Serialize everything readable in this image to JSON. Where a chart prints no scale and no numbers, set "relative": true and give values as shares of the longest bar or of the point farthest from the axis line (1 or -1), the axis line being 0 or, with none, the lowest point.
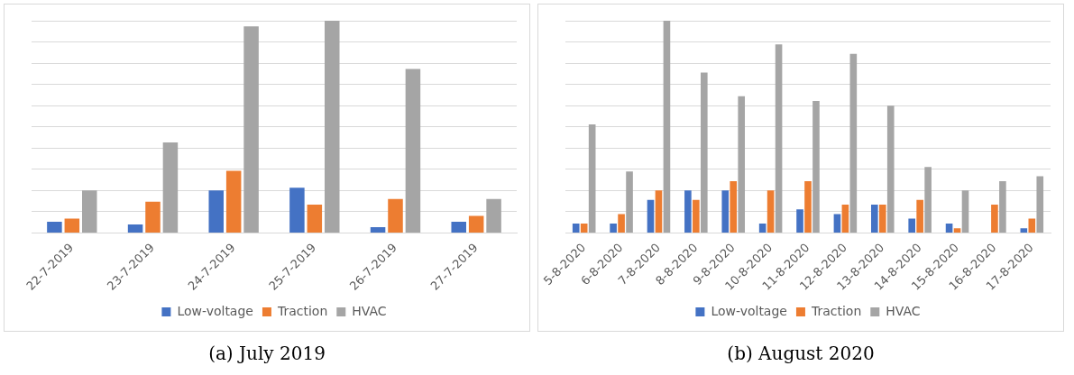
{
  "chart_data": [
    {
      "type": "bar",
      "title": "(a) July 2019",
      "categories": [
        "22-7-2019",
        "23-7-2019",
        "24-7-2019",
        "25-7-2019",
        "26-7-2019",
        "27-7-2019"
      ],
      "relative": true,
      "grid": "y",
      "legend": "bottom",
      "series": [
        {
          "name": "Low-voltage",
          "color": "#4472c4",
          "values": [
            0.053,
            0.04,
            0.2,
            0.213,
            0.027,
            0.053
          ]
        },
        {
          "name": "Traction",
          "color": "#ed7d31",
          "values": [
            0.067,
            0.147,
            0.293,
            0.133,
            0.16,
            0.08
          ]
        },
        {
          "name": "HVAC",
          "color": "#a5a5a5",
          "values": [
            0.2,
            0.427,
            0.973,
            1,
            0.773,
            0.16
          ]
        }
      ]
    },
    {
      "type": "bar",
      "title": "(b) August 2020",
      "categories": [
        "5-8-2020",
        "6-8-2020",
        "7-8-2020",
        "8-8-2020",
        "9-8-2020",
        "10-8-2020",
        "11-8-2020",
        "12-8-2020",
        "13-8-2020",
        "14-8-2020",
        "15-8-2020",
        "16-8-2020",
        "17-8-2020"
      ],
      "relative": true,
      "grid": "y",
      "legend": "bottom",
      "series": [
        {
          "name": "Low-voltage",
          "color": "#4472c4",
          "values": [
            0.044,
            0.044,
            0.156,
            0.2,
            0.2,
            0.044,
            0.111,
            0.089,
            0.133,
            0.067,
            0.044,
            0,
            0.022
          ]
        },
        {
          "name": "Traction",
          "color": "#ed7d31",
          "values": [
            0.044,
            0.089,
            0.2,
            0.156,
            0.244,
            0.2,
            0.244,
            0.133,
            0.133,
            0.156,
            0.022,
            0.133,
            0.067
          ]
        },
        {
          "name": "HVAC",
          "color": "#a5a5a5",
          "values": [
            0.511,
            0.289,
            1,
            0.756,
            0.644,
            0.889,
            0.622,
            0.844,
            0.6,
            0.311,
            0.2,
            0.244,
            0.267
          ]
        }
      ]
    }
  ]
}
